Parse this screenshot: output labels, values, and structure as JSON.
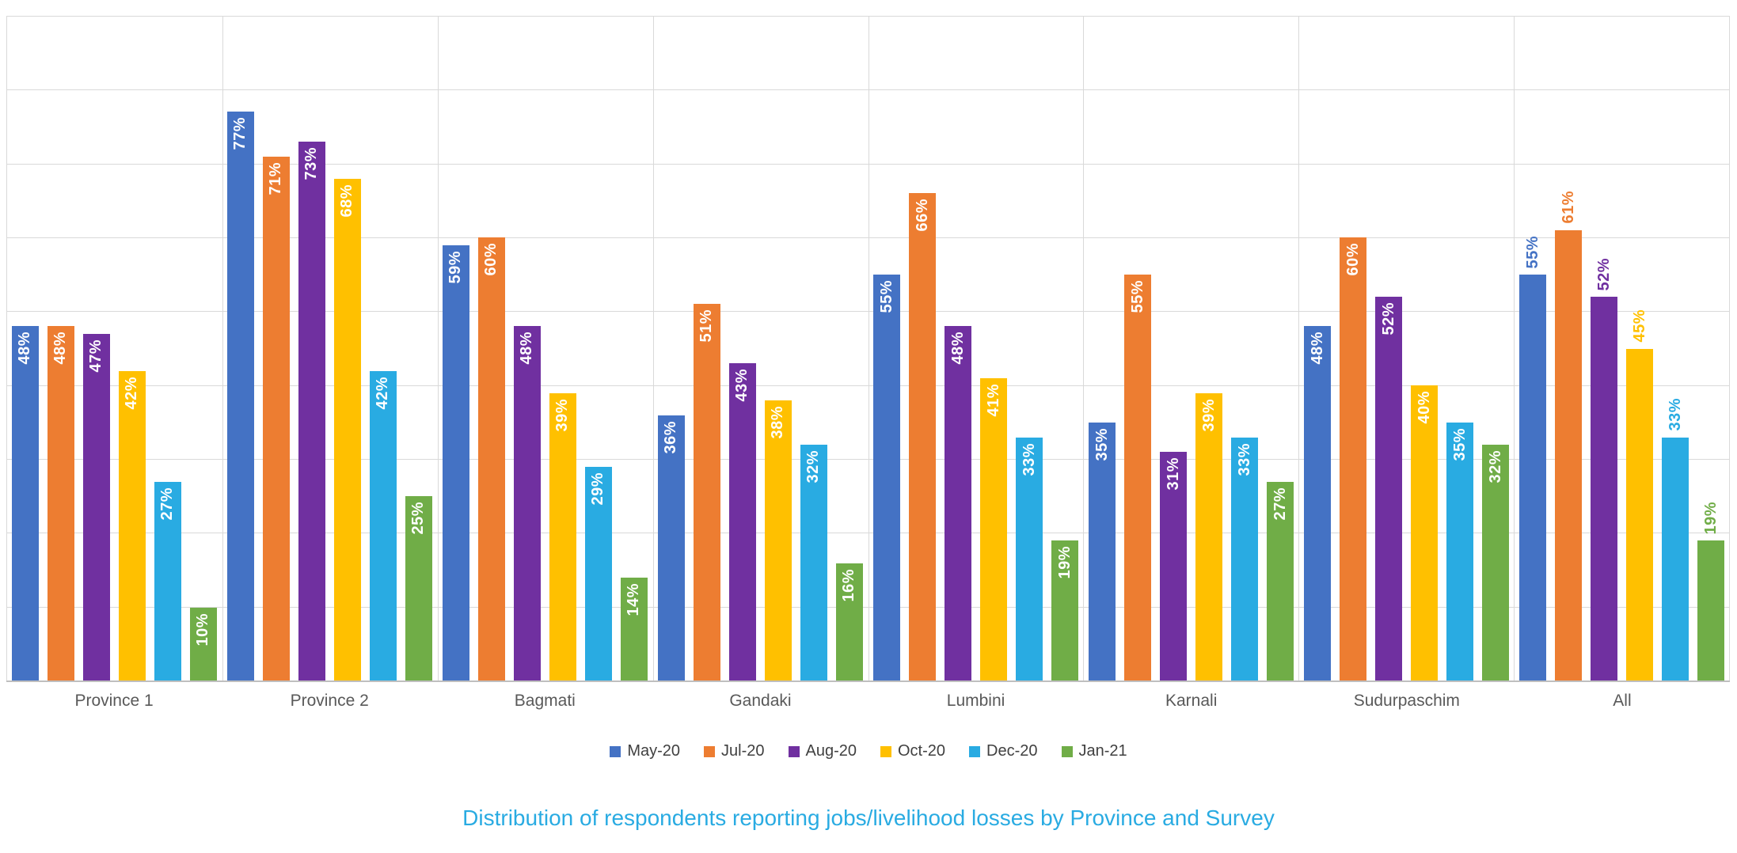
{
  "chart_data": {
    "type": "bar",
    "title": "Distribution of respondents reporting jobs/livelihood losses by Province and Survey",
    "categories": [
      "Province 1",
      "Province 2",
      "Bagmati",
      "Gandaki",
      "Lumbini",
      "Karnali",
      "Sudurpaschim",
      "All"
    ],
    "series": [
      {
        "name": "May-20",
        "color": "#4472C4",
        "values": [
          48,
          77,
          59,
          36,
          55,
          35,
          48,
          55
        ]
      },
      {
        "name": "Jul-20",
        "color": "#ED7D31",
        "values": [
          48,
          71,
          60,
          51,
          66,
          55,
          60,
          61
        ]
      },
      {
        "name": "Aug-20",
        "color": "#7030A0",
        "values": [
          47,
          73,
          48,
          43,
          48,
          31,
          52,
          52
        ]
      },
      {
        "name": "Oct-20",
        "color": "#FFC000",
        "values": [
          42,
          68,
          39,
          38,
          41,
          39,
          40,
          45
        ]
      },
      {
        "name": "Dec-20",
        "color": "#29ABE2",
        "values": [
          27,
          42,
          29,
          32,
          33,
          33,
          35,
          33
        ]
      },
      {
        "name": "Jan-21",
        "color": "#70AD47",
        "values": [
          10,
          25,
          14,
          16,
          19,
          27,
          32,
          19
        ]
      }
    ],
    "value_suffix": "%",
    "ylim": [
      0,
      90
    ],
    "gridline_step": 10,
    "grid": true,
    "legend_position": "bottom",
    "data_labels": {
      "inside_color": "#FFFFFF",
      "outside_label_category": "All",
      "rotation": "vertical"
    },
    "style": {
      "gridline_color": "#D9D9D9",
      "axis_line_color": "#BFBFBF",
      "category_label_color": "#595959",
      "legend_text_color": "#404040",
      "title_color": "#29ABE2",
      "background": "#FFFFFF"
    }
  }
}
